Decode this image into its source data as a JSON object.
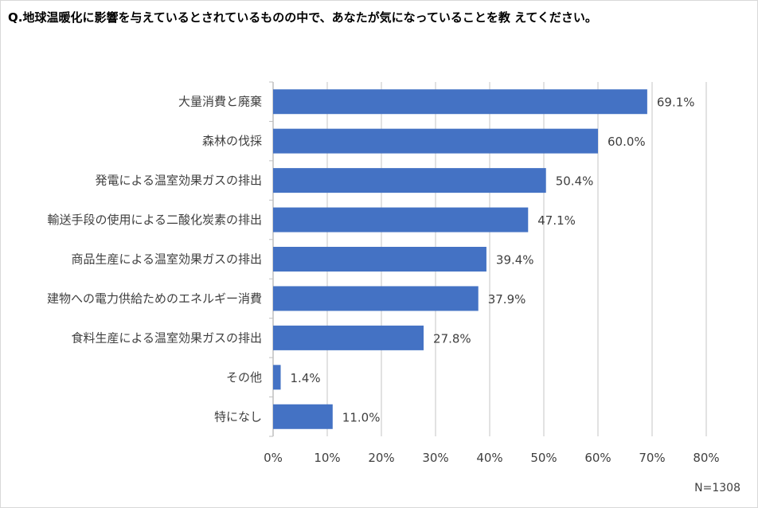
{
  "chart_data": {
    "type": "bar",
    "orientation": "horizontal",
    "title": "Q.地球温暖化に影響を与えているとされているものの中で、あなたが気になっていることを教 えてください。",
    "note": "N=1308",
    "categories": [
      "大量消費と廃棄",
      "森林の伐採",
      "発電による温室効果ガスの排出",
      "輸送手段の使用による二酸化炭素の排出",
      "商品生産による温室効果ガスの排出",
      "建物への電力供給ためのエネルギー消費",
      "食料生産による温室効果ガスの排出",
      "その他",
      "特になし"
    ],
    "values": [
      69.1,
      60.0,
      50.4,
      47.1,
      39.4,
      37.9,
      27.8,
      1.4,
      11.0
    ],
    "value_labels": [
      "69.1%",
      "60.0%",
      "50.4%",
      "47.1%",
      "39.4%",
      "37.9%",
      "27.8%",
      "1.4%",
      "11.0%"
    ],
    "xlim": [
      0,
      80
    ],
    "xticks": [
      0,
      10,
      20,
      30,
      40,
      50,
      60,
      70,
      80
    ],
    "xtick_labels": [
      "0%",
      "10%",
      "20%",
      "30%",
      "40%",
      "50%",
      "60%",
      "70%",
      "80%"
    ],
    "grid": true,
    "bar_color": "#4472c4",
    "grid_color": "#d9d9d9"
  }
}
